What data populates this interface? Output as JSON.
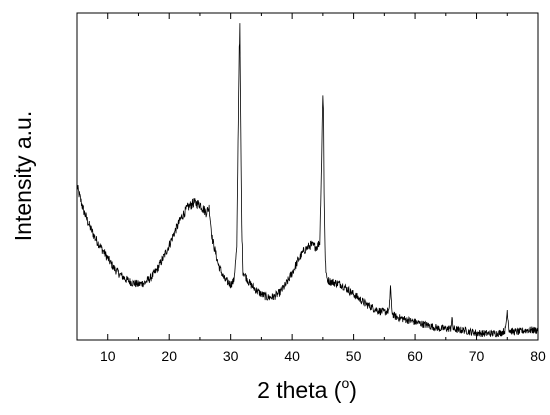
{
  "chart_data": {
    "type": "line",
    "title": "",
    "xlabel_main": "2 theta (",
    "xlabel_sup": "o",
    "xlabel_end": ")",
    "ylabel": "Intensity a.u.",
    "xlim": [
      5,
      80
    ],
    "ylim": [
      0,
      100
    ],
    "x_ticks": [
      10,
      20,
      30,
      40,
      50,
      60,
      70,
      80
    ],
    "y_ticks_labeled": false,
    "grid": false,
    "series": [
      {
        "color": "#000000",
        "x": [
          5,
          6,
          7,
          8,
          9,
          10,
          11,
          12,
          13,
          14,
          15,
          16,
          17,
          18,
          19,
          20,
          21,
          22,
          23,
          24,
          25,
          26,
          26.5,
          27,
          28,
          29,
          30,
          30.5,
          31,
          31.2,
          31.4,
          31.5,
          31.6,
          31.8,
          32,
          33,
          34,
          35,
          36,
          37,
          38,
          39,
          40,
          41,
          42,
          43,
          44,
          44.5,
          44.8,
          45,
          45.1,
          45.2,
          45.4,
          45.6,
          46,
          47,
          48,
          49,
          50,
          51,
          52,
          53,
          54,
          55,
          55.8,
          56,
          56.2,
          56.5,
          57,
          58,
          59,
          60,
          61,
          62,
          63,
          64,
          65,
          65.8,
          66,
          66.2,
          67,
          68,
          69,
          70,
          71,
          72,
          73,
          74,
          74.7,
          75,
          75.3,
          76,
          77,
          78,
          79,
          80
        ],
        "y": [
          47,
          40,
          35,
          31,
          28,
          25,
          22,
          20,
          18.5,
          17.5,
          17,
          17.5,
          19,
          21.5,
          25,
          29,
          33.5,
          37.5,
          40.5,
          42,
          41.5,
          39,
          40.5,
          31,
          23,
          18.5,
          17,
          18,
          28,
          60,
          90,
          95,
          72,
          35,
          21,
          17.5,
          15.5,
          14,
          13,
          13.2,
          14.5,
          17,
          20.5,
          24.5,
          27.5,
          29,
          28.5,
          30,
          55,
          76,
          70,
          45,
          24,
          19,
          18,
          17.5,
          17,
          15.5,
          14,
          12.5,
          11,
          10,
          9,
          8.5,
          9,
          17,
          9,
          7.5,
          7,
          6.5,
          6,
          5.5,
          5,
          4.5,
          4,
          3.5,
          3.5,
          3.5,
          6.5,
          3.5,
          3,
          3,
          2.5,
          2.2,
          2,
          2,
          2,
          2.2,
          3,
          9,
          3,
          2.5,
          2.5,
          3,
          3,
          3
        ]
      }
    ]
  }
}
